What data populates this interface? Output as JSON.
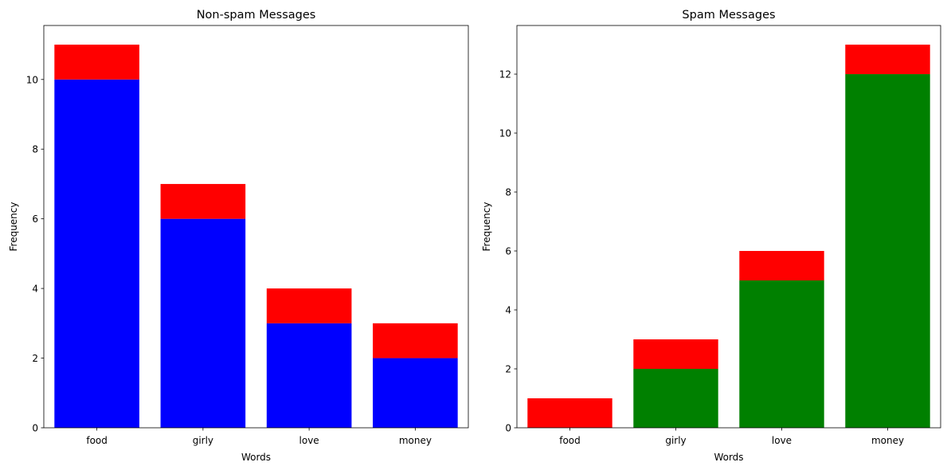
{
  "chart_data": [
    {
      "type": "bar",
      "stacked": true,
      "title": "Non-spam Messages",
      "xlabel": "Words",
      "ylabel": "Frequency",
      "categories": [
        "food",
        "girly",
        "love",
        "money"
      ],
      "series": [
        {
          "color": "#0000ff",
          "values": [
            10,
            6,
            3,
            2
          ]
        },
        {
          "color": "#ff0000",
          "values": [
            1,
            1,
            1,
            1
          ]
        }
      ],
      "yticks": [
        0,
        2,
        4,
        6,
        8,
        10
      ],
      "ylim": [
        0,
        11.55
      ],
      "grid": false
    },
    {
      "type": "bar",
      "stacked": true,
      "title": "Spam Messages",
      "xlabel": "Words",
      "ylabel": "Frequency",
      "categories": [
        "food",
        "girly",
        "love",
        "money"
      ],
      "series": [
        {
          "color": "#008000",
          "values": [
            0,
            2,
            5,
            12
          ]
        },
        {
          "color": "#ff0000",
          "values": [
            1,
            1,
            1,
            1
          ]
        }
      ],
      "yticks": [
        0,
        2,
        4,
        6,
        8,
        10,
        12
      ],
      "ylim": [
        0,
        13.65
      ],
      "grid": false
    }
  ]
}
